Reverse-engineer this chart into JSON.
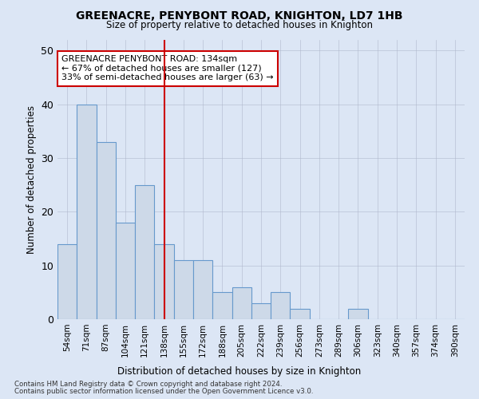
{
  "title": "GREENACRE, PENYBONT ROAD, KNIGHTON, LD7 1HB",
  "subtitle": "Size of property relative to detached houses in Knighton",
  "xlabel": "Distribution of detached houses by size in Knighton",
  "ylabel": "Number of detached properties",
  "categories": [
    "54sqm",
    "71sqm",
    "87sqm",
    "104sqm",
    "121sqm",
    "138sqm",
    "155sqm",
    "172sqm",
    "188sqm",
    "205sqm",
    "222sqm",
    "239sqm",
    "256sqm",
    "273sqm",
    "289sqm",
    "306sqm",
    "323sqm",
    "340sqm",
    "357sqm",
    "374sqm",
    "390sqm"
  ],
  "values": [
    14,
    40,
    33,
    18,
    25,
    14,
    11,
    11,
    5,
    6,
    3,
    5,
    2,
    0,
    0,
    2,
    0,
    0,
    0,
    0,
    0
  ],
  "bar_color": "#cdd9e8",
  "bar_edge_color": "#6699cc",
  "highlight_index": 5,
  "highlight_line_color": "#cc0000",
  "annotation_title": "GREENACRE PENYBONT ROAD: 134sqm",
  "annotation_line1": "← 67% of detached houses are smaller (127)",
  "annotation_line2": "33% of semi-detached houses are larger (63) →",
  "annotation_box_color": "#ffffff",
  "annotation_box_edge": "#cc0000",
  "footer_line1": "Contains HM Land Registry data © Crown copyright and database right 2024.",
  "footer_line2": "Contains public sector information licensed under the Open Government Licence v3.0.",
  "ylim": [
    0,
    52
  ],
  "background_color": "#dce6f5"
}
